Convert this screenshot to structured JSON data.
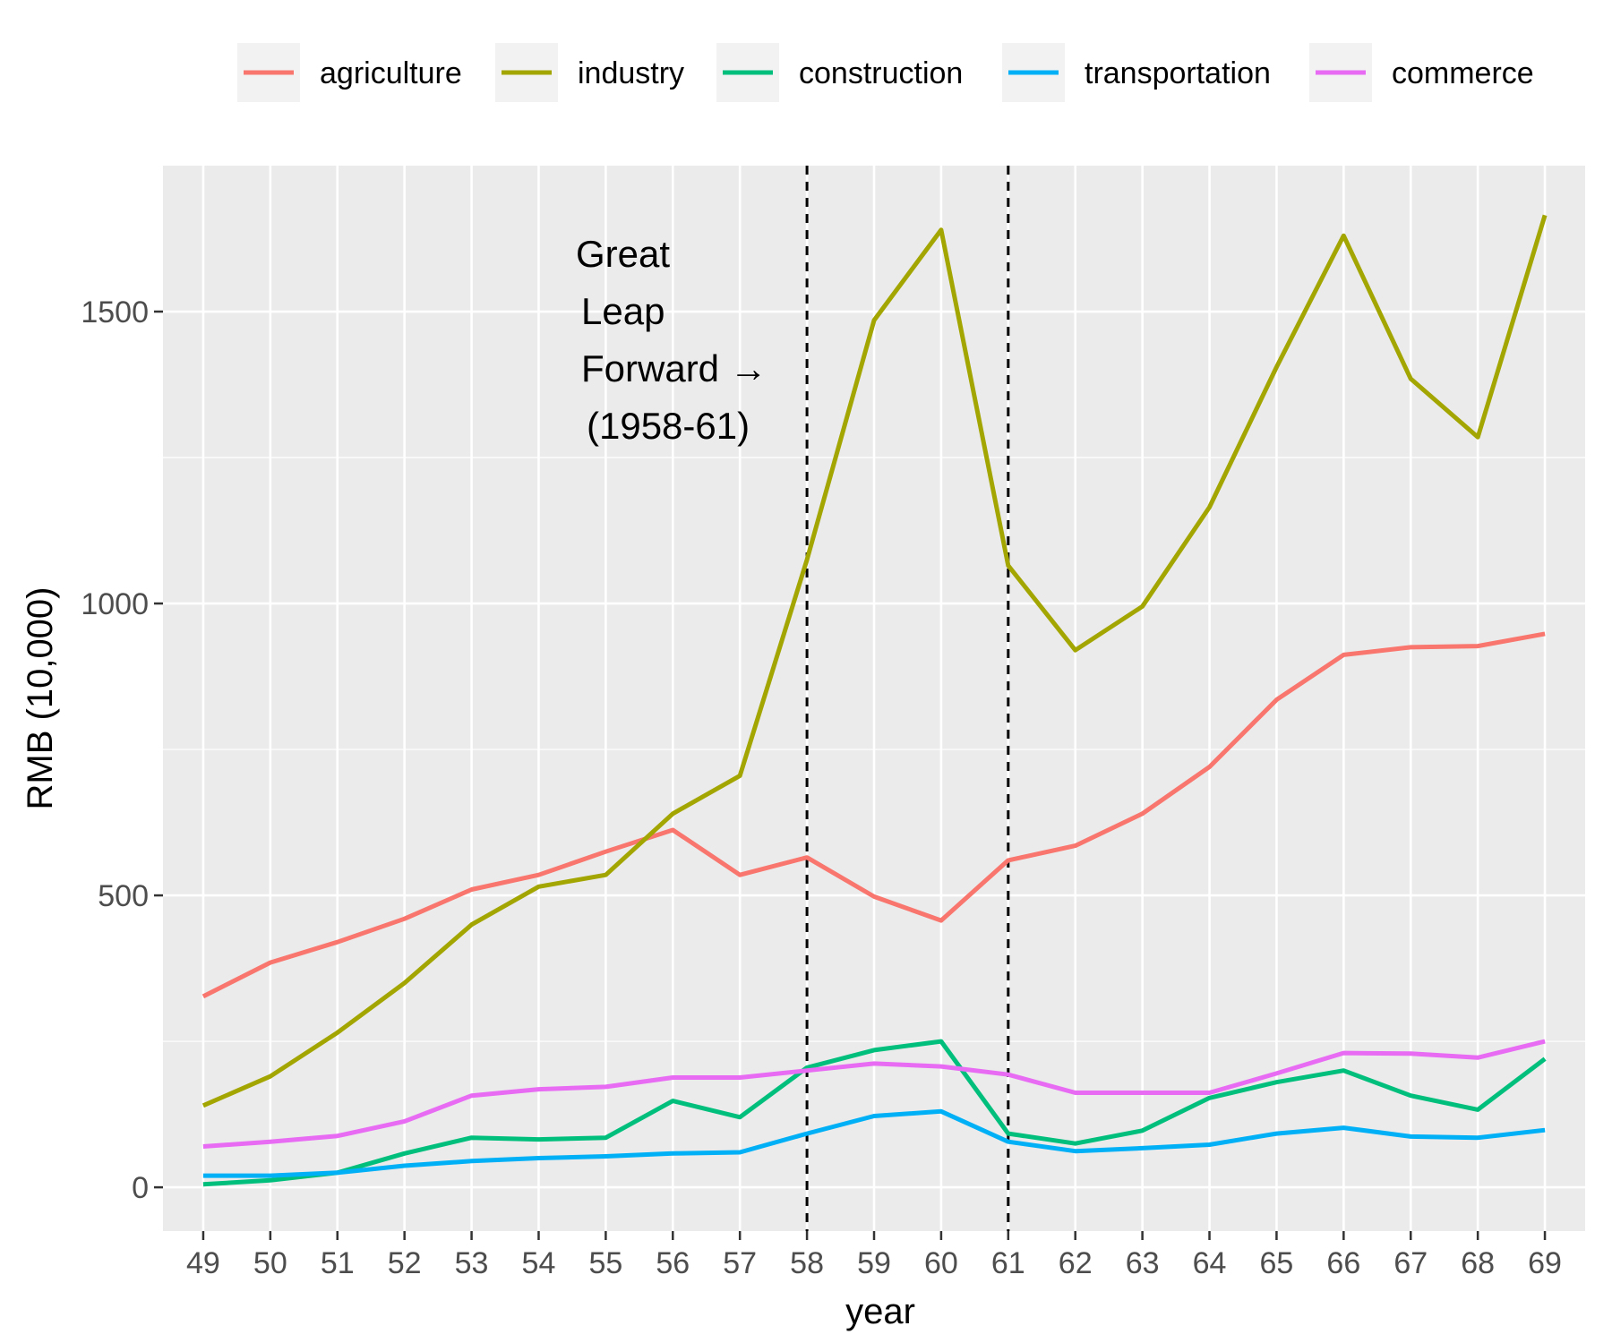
{
  "chart_data": {
    "type": "line",
    "xlabel": "year",
    "ylabel": "RMB (10,000)",
    "x": [
      49,
      50,
      51,
      52,
      53,
      54,
      55,
      56,
      57,
      58,
      59,
      60,
      61,
      62,
      63,
      64,
      65,
      66,
      67,
      68,
      69
    ],
    "x_tick_labels": [
      "49",
      "50",
      "51",
      "52",
      "53",
      "54",
      "55",
      "56",
      "57",
      "58",
      "59",
      "60",
      "61",
      "62",
      "63",
      "64",
      "65",
      "66",
      "67",
      "68",
      "69"
    ],
    "yticks": [
      0,
      500,
      1000,
      1500
    ],
    "y_tick_labels": [
      "0",
      "500",
      "1000",
      "1500"
    ],
    "ylim": [
      -75,
      1750
    ],
    "xlim": [
      48.4,
      69.6
    ],
    "grid": true,
    "legend_position": "top",
    "vlines": [
      58,
      61
    ],
    "annotation": {
      "lines": [
        "Great",
        "Leap",
        "Forward →",
        "(1958-61)"
      ]
    },
    "series": [
      {
        "name": "agriculture",
        "color": "#F8766D",
        "values": [
          327,
          385,
          420,
          460,
          510,
          535,
          575,
          612,
          535,
          565,
          498,
          457,
          560,
          585,
          640,
          720,
          835,
          912,
          925,
          927,
          948
        ]
      },
      {
        "name": "industry",
        "color": "#A3A500",
        "values": [
          140,
          190,
          265,
          350,
          450,
          515,
          535,
          640,
          705,
          1075,
          1485,
          1640,
          1065,
          920,
          995,
          1165,
          1405,
          1630,
          1385,
          1285,
          1665
        ]
      },
      {
        "name": "construction",
        "color": "#00BF7D",
        "values": [
          5,
          12,
          25,
          58,
          85,
          82,
          85,
          148,
          120,
          205,
          235,
          250,
          92,
          75,
          97,
          153,
          180,
          200,
          157,
          133,
          220
        ]
      },
      {
        "name": "transportation",
        "color": "#00B0F6",
        "values": [
          20,
          20,
          25,
          37,
          45,
          50,
          53,
          58,
          60,
          92,
          122,
          130,
          78,
          62,
          67,
          73,
          92,
          102,
          87,
          85,
          98
        ]
      },
      {
        "name": "commerce",
        "color": "#E76BF3",
        "values": [
          70,
          78,
          88,
          113,
          157,
          168,
          172,
          188,
          188,
          200,
          212,
          207,
          193,
          162,
          162,
          162,
          195,
          230,
          229,
          222,
          250
        ]
      }
    ]
  }
}
